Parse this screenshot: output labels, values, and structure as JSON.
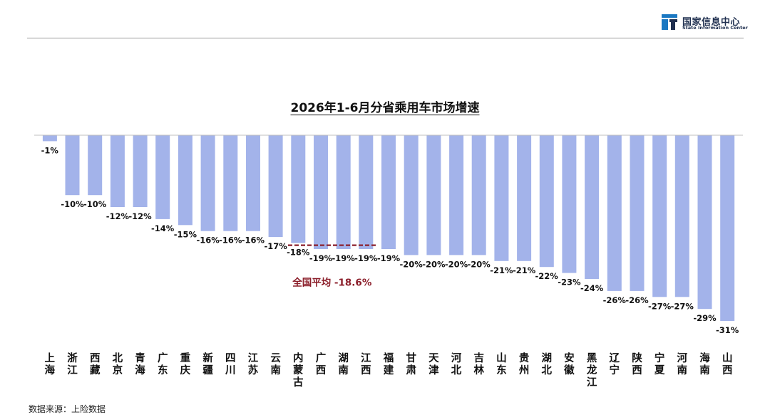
{
  "logo": {
    "name": "国家信息中心",
    "subtitle": "State Information Center",
    "colors": {
      "blue": "#1a78c2",
      "dark": "#1f2f4f"
    }
  },
  "source": "数据来源：上险数据",
  "colors": {
    "bar": "#a3b3ea",
    "avg_line": "#8b1e2a",
    "avg_text": "#8b1e2a",
    "axis": "#bfbfbf"
  },
  "chart_data": {
    "type": "bar",
    "title": "2026年1-6月分省乘用车市场增速",
    "categories": [
      "上海",
      "浙江",
      "西藏",
      "北京",
      "青海",
      "广东",
      "重庆",
      "新疆",
      "四川",
      "江苏",
      "云南",
      "内蒙古",
      "广西",
      "湖南",
      "江西",
      "福建",
      "甘肃",
      "天津",
      "河北",
      "吉林",
      "山东",
      "贵州",
      "湖北",
      "安徽",
      "黑龙江",
      "辽宁",
      "陕西",
      "宁夏",
      "河南",
      "海南",
      "山西"
    ],
    "values": [
      -1,
      -10,
      -10,
      -12,
      -12,
      -14,
      -15,
      -16,
      -16,
      -16,
      -17,
      -18,
      -19,
      -19,
      -19,
      -19,
      -20,
      -20,
      -20,
      -20,
      -21,
      -21,
      -22,
      -23,
      -24,
      -26,
      -26,
      -27,
      -27,
      -29,
      -31
    ],
    "value_labels": [
      "-1%",
      "-10%",
      "-10%",
      "-12%",
      "-12%",
      "-14%",
      "-15%",
      "-16%",
      "-16%",
      "-16%",
      "-17%",
      "-18%",
      "-19%",
      "-19%",
      "-19%",
      "-19%",
      "-20%",
      "-20%",
      "-20%",
      "-20%",
      "-21%",
      "-21%",
      "-22%",
      "-23%",
      "-24%",
      "-26%",
      "-26%",
      "-27%",
      "-27%",
      "-29%",
      "-31%"
    ],
    "ylim": [
      -31,
      0
    ],
    "grid": false,
    "legend": false,
    "average": {
      "value": -18.6,
      "label": "全国平均 -18.6%",
      "from_category": "内蒙古",
      "to_category": "江西"
    }
  }
}
